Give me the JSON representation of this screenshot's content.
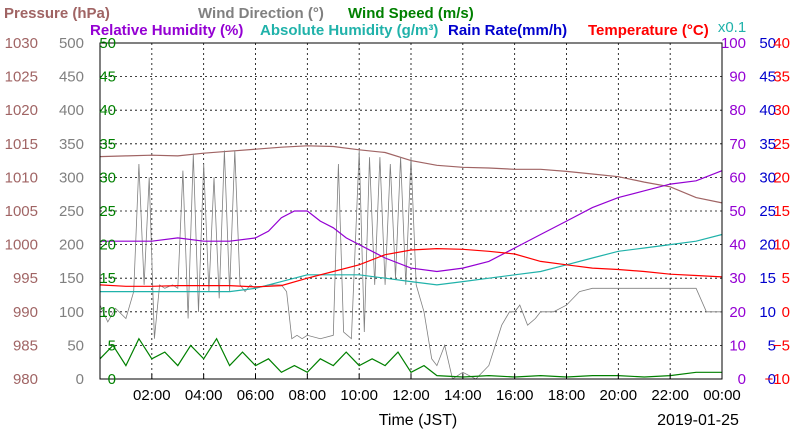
{
  "chart_data": {
    "type": "line",
    "xlabel": "Time (JST)",
    "date_label": "2019-01-25",
    "scale_note": "x0.1",
    "x_ticks": [
      "02:00",
      "04:00",
      "06:00",
      "08:00",
      "10:00",
      "12:00",
      "14:00",
      "16:00",
      "18:00",
      "20:00",
      "22:00",
      "00:00"
    ],
    "x_range_hours": [
      0,
      24
    ],
    "grid": true,
    "axes": [
      {
        "name": "Pressure (hPa)",
        "color": "#a06464",
        "range": [
          980,
          1030
        ],
        "ticks": [
          "980",
          "985",
          "990",
          "995",
          "1000",
          "1005",
          "1010",
          "1015",
          "1020",
          "1025",
          "1030"
        ]
      },
      {
        "name": "Wind Direction (°)",
        "color": "#808080",
        "range": [
          0,
          500
        ],
        "ticks": [
          "0",
          "50",
          "100",
          "150",
          "200",
          "250",
          "300",
          "350",
          "400",
          "450",
          "500"
        ]
      },
      {
        "name": "Wind Speed (m/s)",
        "color": "#008000",
        "range": [
          0,
          50
        ],
        "ticks": [
          "0",
          "5",
          "10",
          "15",
          "20",
          "25",
          "30",
          "35",
          "40",
          "45",
          "50"
        ]
      },
      {
        "name": "Relative Humidity (%)",
        "color": "#9400d3",
        "range": [
          0,
          100
        ],
        "ticks": [
          "0",
          "10",
          "20",
          "30",
          "40",
          "50",
          "60",
          "70",
          "80",
          "90",
          "100"
        ]
      },
      {
        "name": "Rain Rate(mm/h)",
        "color": "#0000cd",
        "range": [
          0,
          50
        ],
        "ticks": [
          "0",
          "5",
          "10",
          "15",
          "20",
          "25",
          "30",
          "35",
          "40",
          "45",
          "50"
        ]
      },
      {
        "name": "Temperature (°C)",
        "color": "#ff0000",
        "range": [
          -10,
          40
        ],
        "ticks": [
          "−10",
          "−5",
          "0",
          "5",
          "10",
          "15",
          "20",
          "25",
          "30",
          "35",
          "40"
        ]
      }
    ],
    "legend": [
      {
        "label": "Pressure (hPa)",
        "color": "#a06464"
      },
      {
        "label": "Wind Direction (°)",
        "color": "#808080"
      },
      {
        "label": "Wind Speed (m/s)",
        "color": "#008000"
      },
      {
        "label": "Relative Humidity (%)",
        "color": "#9400d3"
      },
      {
        "label": "Absolute Humidity (g/m³)",
        "color": "#20b2aa"
      },
      {
        "label": "Rain Rate(mm/h)",
        "color": "#0000cd"
      },
      {
        "label": "Temperature (°C)",
        "color": "#ff0000"
      }
    ],
    "series": [
      {
        "name": "Pressure (hPa)",
        "color": "#a06464",
        "unit_axis": "pressure",
        "points": [
          [
            0,
            1013.1
          ],
          [
            1,
            1013.2
          ],
          [
            2,
            1013.3
          ],
          [
            3,
            1013.2
          ],
          [
            4,
            1013.6
          ],
          [
            5,
            1013.9
          ],
          [
            6,
            1014.2
          ],
          [
            7,
            1014.5
          ],
          [
            8,
            1014.7
          ],
          [
            9,
            1014.6
          ],
          [
            10,
            1014.1
          ],
          [
            11,
            1013.7
          ],
          [
            12,
            1012.5
          ],
          [
            13,
            1011.8
          ],
          [
            14,
            1011.5
          ],
          [
            15,
            1011.4
          ],
          [
            16,
            1011.2
          ],
          [
            17,
            1011.2
          ],
          [
            18,
            1010.9
          ],
          [
            19,
            1010.5
          ],
          [
            20,
            1010.1
          ],
          [
            21,
            1009.3
          ],
          [
            22,
            1008.6
          ],
          [
            23,
            1007.0
          ],
          [
            24,
            1006.2
          ]
        ]
      },
      {
        "name": "Wind Direction (°)",
        "color": "#808080",
        "unit_axis": "winddir",
        "points": [
          [
            0,
            110
          ],
          [
            0.3,
            85
          ],
          [
            0.6,
            105
          ],
          [
            1,
            90
          ],
          [
            1.3,
            130
          ],
          [
            1.5,
            320
          ],
          [
            1.7,
            140
          ],
          [
            1.9,
            300
          ],
          [
            2.1,
            60
          ],
          [
            2.3,
            140
          ],
          [
            2.5,
            135
          ],
          [
            2.8,
            140
          ],
          [
            3,
            135
          ],
          [
            3.2,
            310
          ],
          [
            3.4,
            90
          ],
          [
            3.6,
            335
          ],
          [
            3.8,
            100
          ],
          [
            4,
            320
          ],
          [
            4.2,
            130
          ],
          [
            4.4,
            300
          ],
          [
            4.6,
            120
          ],
          [
            4.8,
            340
          ],
          [
            5,
            130
          ],
          [
            5.2,
            340
          ],
          [
            5.4,
            140
          ],
          [
            5.6,
            130
          ],
          [
            5.8,
            140
          ],
          [
            6,
            135
          ],
          [
            6.5,
            140
          ],
          [
            7,
            140
          ],
          [
            7.2,
            130
          ],
          [
            7.4,
            60
          ],
          [
            7.6,
            65
          ],
          [
            7.8,
            60
          ],
          [
            8,
            65
          ],
          [
            8.5,
            60
          ],
          [
            9,
            65
          ],
          [
            9.2,
            320
          ],
          [
            9.4,
            70
          ],
          [
            9.7,
            60
          ],
          [
            10,
            340
          ],
          [
            10.2,
            70
          ],
          [
            10.4,
            330
          ],
          [
            10.6,
            140
          ],
          [
            10.8,
            330
          ],
          [
            11,
            140
          ],
          [
            11.2,
            320
          ],
          [
            11.4,
            150
          ],
          [
            11.6,
            330
          ],
          [
            11.8,
            140
          ],
          [
            12,
            330
          ],
          [
            12.2,
            140
          ],
          [
            12.5,
            100
          ],
          [
            12.8,
            30
          ],
          [
            13,
            20
          ],
          [
            13.3,
            50
          ],
          [
            13.6,
            0
          ],
          [
            14,
            10
          ],
          [
            14.5,
            0
          ],
          [
            15,
            20
          ],
          [
            15.5,
            80
          ],
          [
            15.8,
            100
          ],
          [
            16,
            100
          ],
          [
            16.2,
            110
          ],
          [
            16.5,
            80
          ],
          [
            16.8,
            90
          ],
          [
            17,
            100
          ],
          [
            17.5,
            100
          ],
          [
            18,
            110
          ],
          [
            18.5,
            130
          ],
          [
            19,
            135
          ],
          [
            20,
            135
          ],
          [
            21,
            135
          ],
          [
            22,
            135
          ],
          [
            23,
            135
          ],
          [
            23.4,
            100
          ],
          [
            24,
            100
          ]
        ]
      },
      {
        "name": "Wind Speed (m/s)",
        "color": "#008000",
        "unit_axis": "windspeed",
        "points": [
          [
            0,
            3
          ],
          [
            0.5,
            5
          ],
          [
            1,
            2
          ],
          [
            1.5,
            6
          ],
          [
            2,
            3
          ],
          [
            2.5,
            4
          ],
          [
            3,
            2
          ],
          [
            3.5,
            5
          ],
          [
            4,
            3
          ],
          [
            4.5,
            6
          ],
          [
            5,
            2
          ],
          [
            5.5,
            4
          ],
          [
            6,
            2
          ],
          [
            6.5,
            3
          ],
          [
            7,
            1
          ],
          [
            7.5,
            2
          ],
          [
            8,
            1
          ],
          [
            8.5,
            3
          ],
          [
            9,
            2
          ],
          [
            9.5,
            4
          ],
          [
            10,
            2
          ],
          [
            10.5,
            3
          ],
          [
            11,
            2
          ],
          [
            11.5,
            4
          ],
          [
            12,
            1
          ],
          [
            12.5,
            2
          ],
          [
            13,
            0.5
          ],
          [
            14,
            0.3
          ],
          [
            15,
            0.5
          ],
          [
            16,
            0.3
          ],
          [
            17,
            0.5
          ],
          [
            18,
            0.3
          ],
          [
            19,
            0.5
          ],
          [
            20,
            0.5
          ],
          [
            21,
            0.3
          ],
          [
            22,
            0.5
          ],
          [
            23,
            1
          ],
          [
            24,
            1
          ]
        ]
      },
      {
        "name": "Relative Humidity (%)",
        "color": "#9400d3",
        "unit_axis": "rh",
        "points": [
          [
            0,
            41
          ],
          [
            1,
            41
          ],
          [
            2,
            41
          ],
          [
            3,
            42
          ],
          [
            4,
            41
          ],
          [
            5,
            41
          ],
          [
            6,
            42
          ],
          [
            6.5,
            44
          ],
          [
            7,
            48
          ],
          [
            7.5,
            50
          ],
          [
            8,
            50
          ],
          [
            8.5,
            47
          ],
          [
            9,
            45
          ],
          [
            9.5,
            42
          ],
          [
            10,
            40
          ],
          [
            10.5,
            38
          ],
          [
            11,
            36
          ],
          [
            12,
            33
          ],
          [
            13,
            32
          ],
          [
            14,
            33
          ],
          [
            15,
            35
          ],
          [
            16,
            39
          ],
          [
            17,
            43
          ],
          [
            18,
            47
          ],
          [
            19,
            51
          ],
          [
            20,
            54
          ],
          [
            21,
            56
          ],
          [
            22,
            58
          ],
          [
            23,
            59
          ],
          [
            24,
            62
          ]
        ]
      },
      {
        "name": "Absolute Humidity (g/m³)",
        "color": "#20b2aa",
        "unit_axis": "rh",
        "points": [
          [
            0,
            26
          ],
          [
            1,
            26
          ],
          [
            2,
            26
          ],
          [
            3,
            26
          ],
          [
            4,
            26
          ],
          [
            5,
            26
          ],
          [
            6,
            27
          ],
          [
            7,
            29
          ],
          [
            8,
            31
          ],
          [
            9,
            31
          ],
          [
            10,
            31
          ],
          [
            11,
            30
          ],
          [
            12,
            29
          ],
          [
            13,
            28
          ],
          [
            14,
            29
          ],
          [
            15,
            30
          ],
          [
            16,
            31
          ],
          [
            17,
            32
          ],
          [
            18,
            34
          ],
          [
            19,
            36
          ],
          [
            20,
            38
          ],
          [
            21,
            39
          ],
          [
            22,
            40
          ],
          [
            23,
            41
          ],
          [
            24,
            43
          ]
        ]
      },
      {
        "name": "Temperature (°C)",
        "color": "#ff0000",
        "unit_axis": "temp",
        "points": [
          [
            0,
            4.0
          ],
          [
            1,
            3.8
          ],
          [
            2,
            3.8
          ],
          [
            3,
            3.9
          ],
          [
            4,
            3.9
          ],
          [
            5,
            3.9
          ],
          [
            6,
            3.7
          ],
          [
            7,
            3.9
          ],
          [
            8,
            5.0
          ],
          [
            9,
            6.0
          ],
          [
            10,
            7.0
          ],
          [
            11,
            8.5
          ],
          [
            12,
            9.2
          ],
          [
            13,
            9.4
          ],
          [
            14,
            9.3
          ],
          [
            15,
            9.0
          ],
          [
            16,
            8.6
          ],
          [
            17,
            7.5
          ],
          [
            18,
            7.0
          ],
          [
            19,
            6.5
          ],
          [
            20,
            6.3
          ],
          [
            21,
            6.0
          ],
          [
            22,
            5.6
          ],
          [
            23,
            5.4
          ],
          [
            24,
            5.2
          ]
        ]
      }
    ]
  }
}
